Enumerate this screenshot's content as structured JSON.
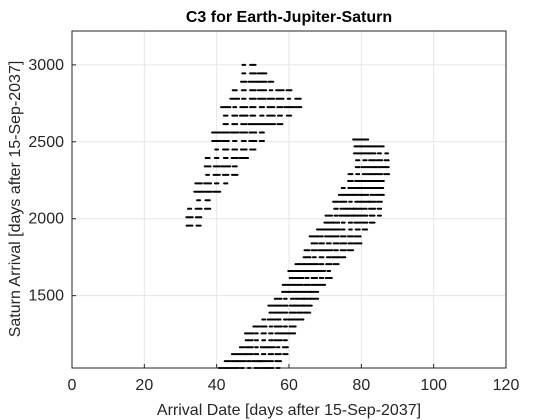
{
  "chart_data": {
    "type": "scatter",
    "title": "C3 for Earth-Jupiter-Saturn",
    "xlabel": "Arrival Date [days after 15-Sep-2037]",
    "ylabel": "Saturn Arrival [days after 15-Sep-2037]",
    "xlim": [
      0,
      120
    ],
    "ylim": [
      1030,
      3220
    ],
    "xticks": [
      0,
      20,
      40,
      60,
      80,
      100,
      120
    ],
    "yticks": [
      1500,
      2000,
      2500,
      3000
    ],
    "grid": true,
    "marker_color": "#000000",
    "clusters": [
      {
        "name": "",
        "polygon": [
          [
            30,
            1900
          ],
          [
            33,
            2120
          ],
          [
            37,
            2380
          ],
          [
            42,
            2700
          ],
          [
            48,
            3050
          ],
          [
            58,
            2880
          ],
          [
            66,
            2760
          ],
          [
            55,
            2560
          ],
          [
            48,
            2370
          ],
          [
            40,
            2120
          ],
          [
            35,
            1950
          ]
        ]
      },
      {
        "name": "",
        "polygon": [
          [
            41,
            1030
          ],
          [
            47,
            1200
          ],
          [
            55,
            1450
          ],
          [
            62,
            1700
          ],
          [
            70,
            2000
          ],
          [
            77,
            2300
          ],
          [
            79,
            2540
          ],
          [
            86,
            2480
          ],
          [
            89,
            2350
          ],
          [
            86,
            2200
          ],
          [
            85,
            2000
          ],
          [
            79,
            1830
          ],
          [
            70,
            1580
          ],
          [
            61,
            1230
          ],
          [
            58,
            1030
          ]
        ]
      }
    ]
  }
}
